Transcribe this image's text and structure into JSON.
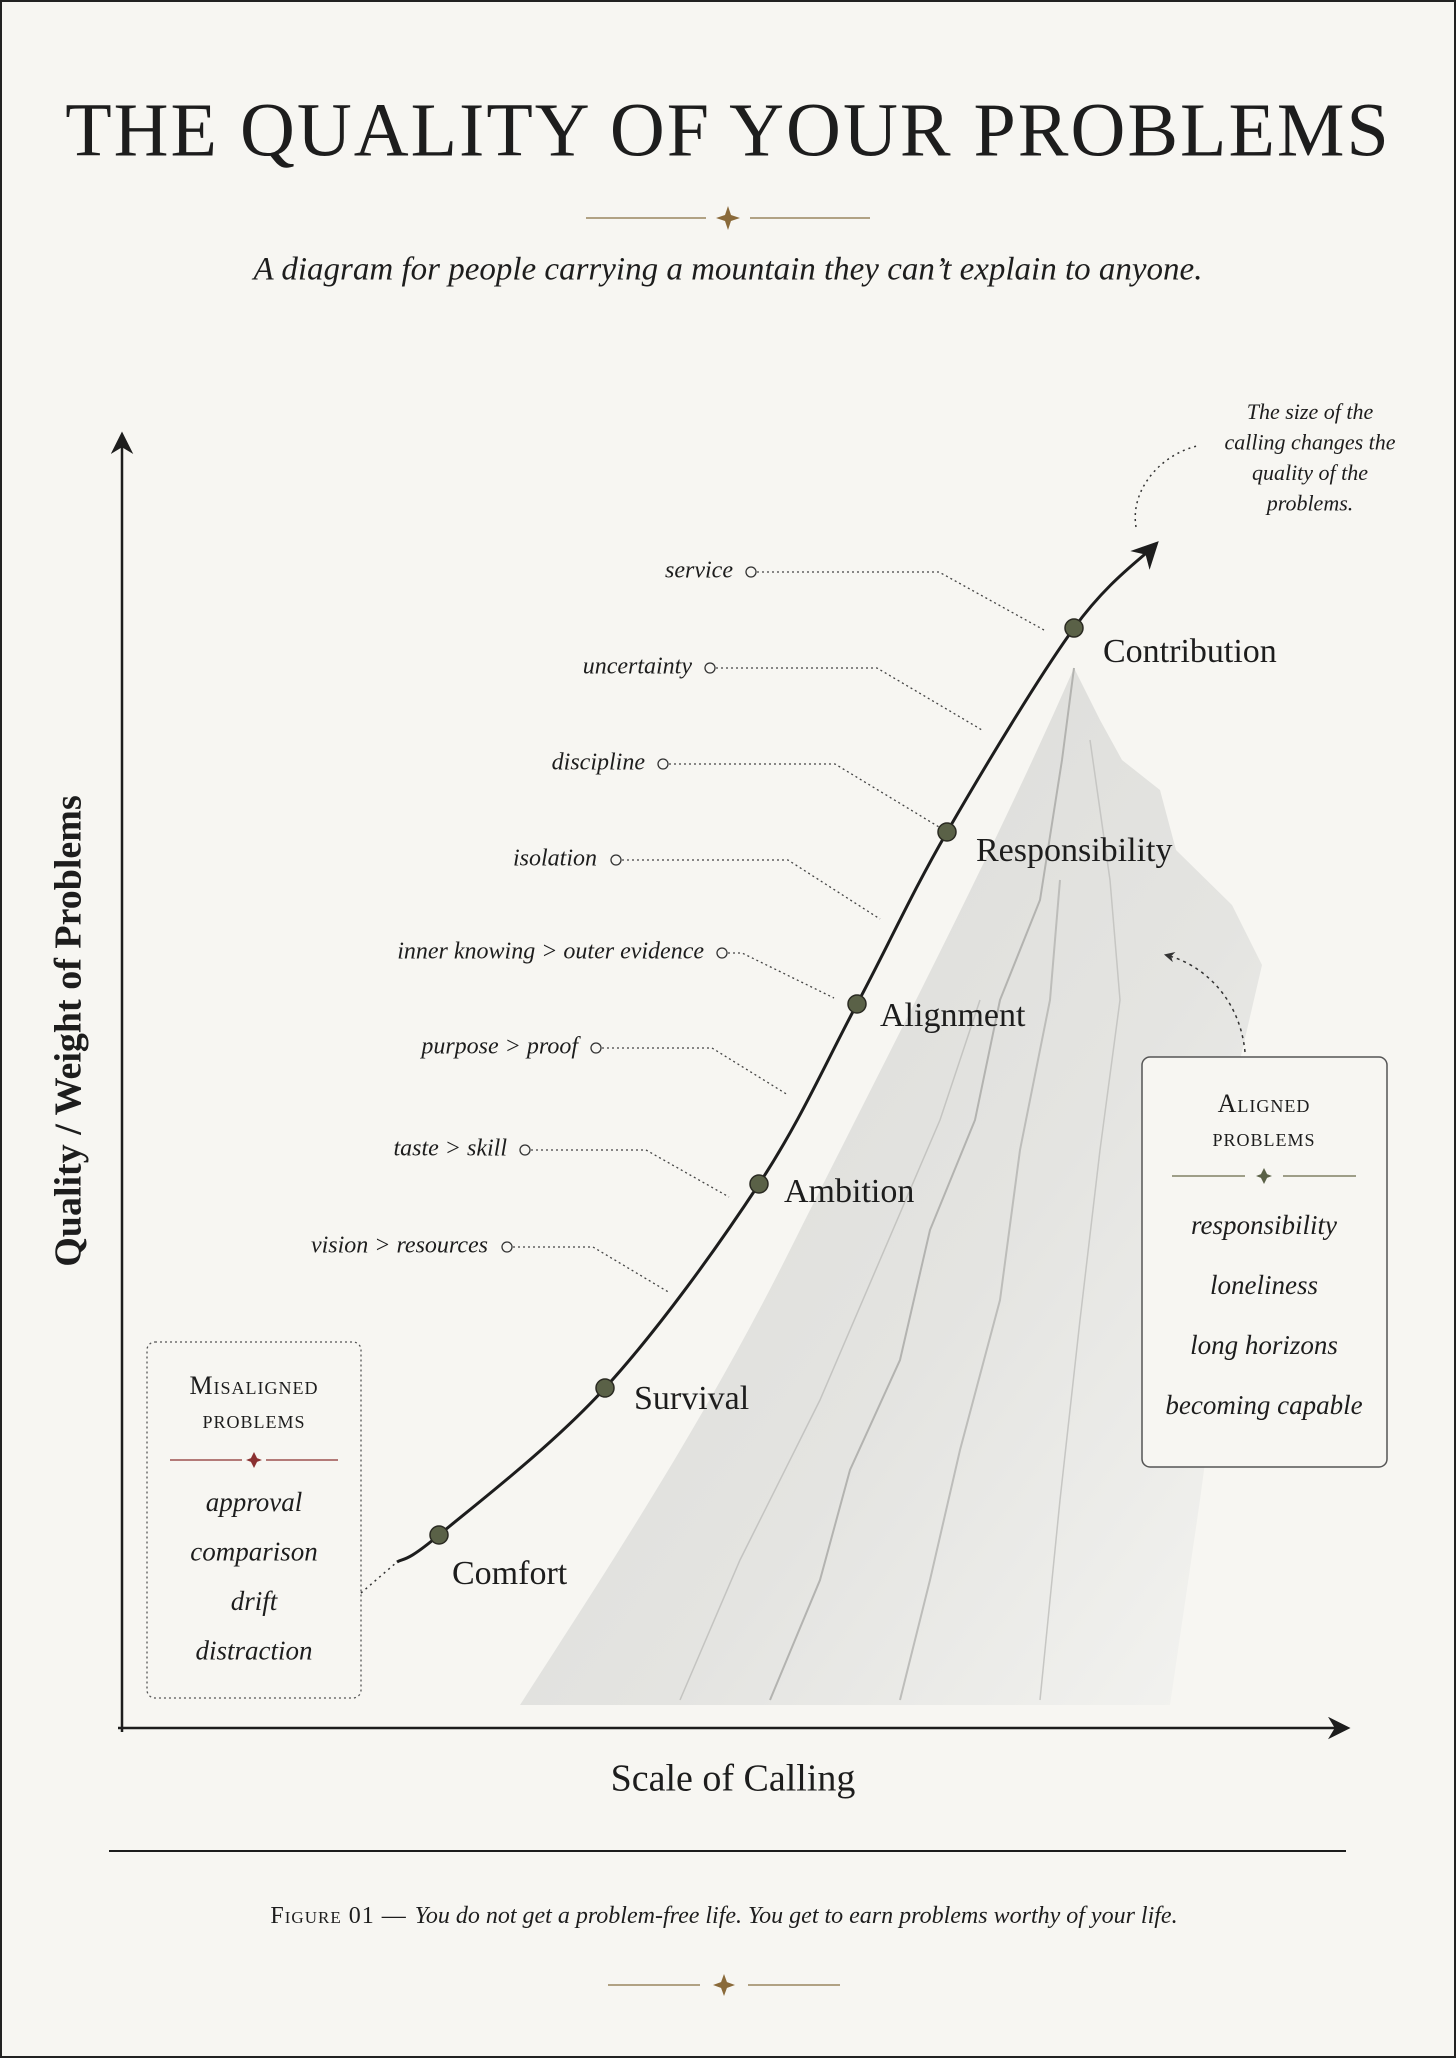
{
  "header": {
    "title": "THE QUALITY OF YOUR PROBLEMS",
    "subtitle": "A diagram for people carrying a mountain they can’t explain to anyone."
  },
  "axes": {
    "y_label": "Quality / Weight of Problems",
    "x_label": "Scale of Calling"
  },
  "annotation": {
    "lines": [
      "The size of the",
      "calling changes the",
      "quality of the",
      "problems."
    ]
  },
  "stages": [
    {
      "label": "Comfort"
    },
    {
      "label": "Survival"
    },
    {
      "label": "Ambition"
    },
    {
      "label": "Alignment"
    },
    {
      "label": "Responsibility"
    },
    {
      "label": "Contribution"
    }
  ],
  "problems": [
    {
      "label": "service"
    },
    {
      "label": "uncertainty"
    },
    {
      "label": "discipline"
    },
    {
      "label": "isolation"
    },
    {
      "label": "inner knowing > outer evidence"
    },
    {
      "label": "purpose > proof"
    },
    {
      "label": "taste > skill"
    },
    {
      "label": "vision > resources"
    }
  ],
  "aligned_box": {
    "title_lines": [
      "Aligned",
      "problems"
    ],
    "items": [
      "responsibility",
      "loneliness",
      "long horizons",
      "becoming capable"
    ]
  },
  "misaligned_box": {
    "title_lines": [
      "Misaligned",
      "problems"
    ],
    "items": [
      "approval",
      "comparison",
      "drift",
      "distraction"
    ]
  },
  "caption": {
    "label": "Figure 01 —",
    "text": "You do not get a problem-free life. You get to earn problems worthy of your life."
  }
}
